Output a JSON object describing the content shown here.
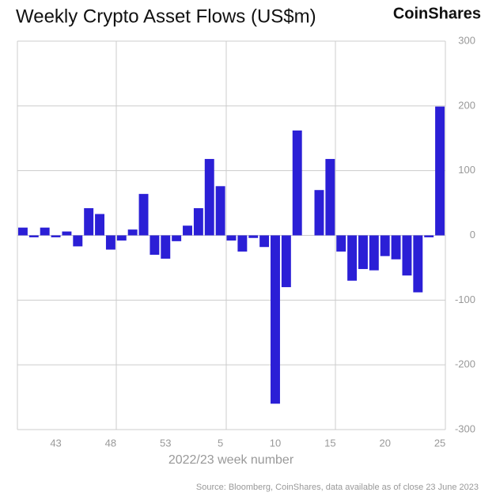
{
  "chart_data": {
    "type": "bar",
    "title": "Weekly Crypto Asset Flows (US$m)",
    "brand": "CoinShares",
    "xlabel": "2022/23 week number",
    "source": "Source: Bloomberg, CoinShares, data available as of close 23 June 2023",
    "categories": [
      null,
      null,
      null,
      "43",
      null,
      null,
      null,
      null,
      "48",
      null,
      null,
      null,
      null,
      "53",
      null,
      null,
      null,
      null,
      "5",
      null,
      null,
      null,
      null,
      "10",
      null,
      null,
      null,
      null,
      "15",
      null,
      null,
      null,
      null,
      "20",
      null,
      null,
      null,
      null,
      "25"
    ],
    "values": [
      12,
      -3,
      12,
      -3,
      6,
      -17,
      42,
      33,
      -22,
      -8,
      9,
      64,
      -30,
      -36,
      -9,
      15,
      42,
      118,
      76,
      -8,
      -25,
      -4,
      -18,
      -260,
      -80,
      162,
      0,
      70,
      118,
      -25,
      -70,
      -52,
      -54,
      -32,
      -37,
      -62,
      -88,
      -3,
      199
    ],
    "color": "#2b1fd6",
    "ylim": [
      -300,
      300
    ],
    "yticks": [
      300,
      200,
      100,
      0,
      -100,
      -200,
      -300
    ],
    "grid": true
  }
}
